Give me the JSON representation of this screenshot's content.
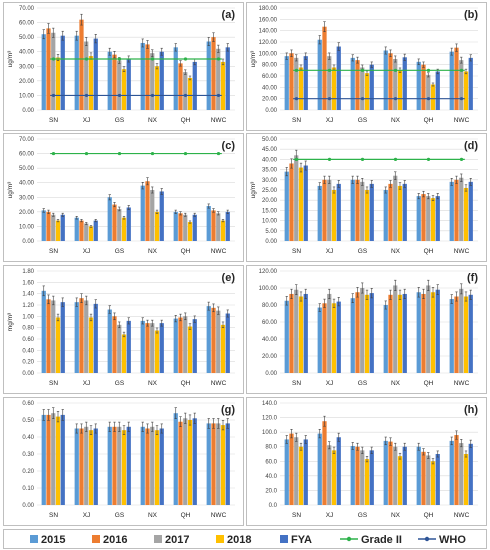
{
  "chart_data": [
    {
      "id": "a",
      "type": "bar",
      "tag": "(a)",
      "ylabel": "ug/m³",
      "categories": [
        "SN",
        "XJ",
        "GS",
        "NX",
        "QH",
        "NWC"
      ],
      "ylim": [
        0,
        70
      ],
      "yticks": [
        0,
        10,
        20,
        30,
        40,
        50,
        60,
        70
      ],
      "decimals": 2,
      "series": [
        {
          "name": "2015",
          "values": [
            52,
            51,
            40,
            46,
            43,
            47
          ]
        },
        {
          "name": "2016",
          "values": [
            56,
            62,
            38,
            45,
            32,
            50
          ]
        },
        {
          "name": "2017",
          "values": [
            53,
            47,
            34,
            39,
            26,
            42
          ]
        },
        {
          "name": "2018",
          "values": [
            36,
            37,
            28,
            30,
            22,
            33
          ]
        },
        {
          "name": "FYA",
          "values": [
            51,
            49,
            35,
            40,
            33,
            43
          ]
        }
      ],
      "grade2": 35,
      "who": 10
    },
    {
      "id": "b",
      "type": "bar",
      "tag": "(b)",
      "ylabel": "ug/m³",
      "categories": [
        "SN",
        "XJ",
        "GS",
        "NX",
        "QH",
        "NWC"
      ],
      "ylim": [
        0,
        180
      ],
      "yticks": [
        0,
        20,
        40,
        60,
        80,
        100,
        120,
        140,
        160,
        180
      ],
      "decimals": 2,
      "series": [
        {
          "name": "2015",
          "values": [
            95,
            124,
            92,
            105,
            85,
            103
          ]
        },
        {
          "name": "2016",
          "values": [
            100,
            147,
            88,
            100,
            80,
            110
          ]
        },
        {
          "name": "2017",
          "values": [
            92,
            95,
            75,
            90,
            62,
            88
          ]
        },
        {
          "name": "2018",
          "values": [
            75,
            75,
            65,
            70,
            45,
            68
          ]
        },
        {
          "name": "FYA",
          "values": [
            95,
            112,
            80,
            93,
            68,
            92
          ]
        }
      ],
      "grade2": 70,
      "who": 20
    },
    {
      "id": "c",
      "type": "bar",
      "tag": "(c)",
      "ylabel": "ug/m³",
      "categories": [
        "SN",
        "XJ",
        "GS",
        "NX",
        "QH",
        "NWC"
      ],
      "ylim": [
        0,
        70
      ],
      "yticks": [
        0,
        10,
        20,
        30,
        40,
        50,
        60,
        70
      ],
      "decimals": 2,
      "series": [
        {
          "name": "2015",
          "values": [
            21,
            16,
            30,
            38,
            20,
            24
          ]
        },
        {
          "name": "2016",
          "values": [
            20,
            14,
            25,
            41,
            19,
            21
          ]
        },
        {
          "name": "2017",
          "values": [
            18,
            12,
            22,
            35,
            18,
            19
          ]
        },
        {
          "name": "2018",
          "values": [
            14,
            10,
            16,
            20,
            13,
            14
          ]
        },
        {
          "name": "FYA",
          "values": [
            18,
            14,
            23,
            34,
            18,
            20
          ]
        }
      ],
      "grade2": 60,
      "who": null
    },
    {
      "id": "d",
      "type": "bar",
      "tag": "(d)",
      "ylabel": "ug/m³",
      "categories": [
        "SN",
        "XJ",
        "GS",
        "NX",
        "QH",
        "NWC"
      ],
      "ylim": [
        0,
        50
      ],
      "yticks": [
        0,
        5,
        10,
        15,
        20,
        25,
        30,
        35,
        40,
        45,
        50
      ],
      "decimals": 2,
      "series": [
        {
          "name": "2015",
          "values": [
            34,
            27,
            30,
            25,
            22,
            29
          ]
        },
        {
          "name": "2016",
          "values": [
            38,
            30,
            30,
            28,
            23,
            30
          ]
        },
        {
          "name": "2017",
          "values": [
            42,
            30,
            29,
            32,
            22,
            31
          ]
        },
        {
          "name": "2018",
          "values": [
            36,
            25,
            25,
            27,
            21,
            26
          ]
        },
        {
          "name": "FYA",
          "values": [
            37,
            28,
            28,
            28,
            22,
            29
          ]
        }
      ],
      "grade2": 40,
      "who": null
    },
    {
      "id": "e",
      "type": "bar",
      "tag": "(e)",
      "ylabel": "mg/m³",
      "categories": [
        "SN",
        "XJ",
        "GS",
        "NX",
        "QH",
        "NWC"
      ],
      "ylim": [
        0,
        1.8
      ],
      "yticks": [
        0,
        0.2,
        0.4,
        0.6,
        0.8,
        1.0,
        1.2,
        1.4,
        1.6,
        1.8
      ],
      "decimals": 2,
      "series": [
        {
          "name": "2015",
          "values": [
            1.45,
            1.25,
            1.12,
            0.92,
            0.96,
            1.18
          ]
        },
        {
          "name": "2016",
          "values": [
            1.3,
            1.32,
            1.0,
            0.88,
            0.98,
            1.15
          ]
        },
        {
          "name": "2017",
          "values": [
            1.28,
            1.28,
            0.85,
            0.88,
            1.0,
            1.1
          ]
        },
        {
          "name": "2018",
          "values": [
            0.98,
            0.98,
            0.68,
            0.75,
            0.82,
            0.85
          ]
        },
        {
          "name": "FYA",
          "values": [
            1.25,
            1.22,
            0.92,
            0.88,
            0.95,
            1.05
          ]
        }
      ],
      "grade2": null,
      "who": null
    },
    {
      "id": "f",
      "type": "bar",
      "tag": "(f)",
      "ylabel": "",
      "categories": [
        "SN",
        "XJ",
        "GS",
        "NX",
        "QH",
        "NWC"
      ],
      "ylim": [
        0,
        120
      ],
      "yticks": [
        0,
        20,
        40,
        60,
        80,
        100,
        120
      ],
      "decimals": 2,
      "series": [
        {
          "name": "2015",
          "values": [
            85,
            77,
            88,
            80,
            95,
            87
          ]
        },
        {
          "name": "2016",
          "values": [
            93,
            82,
            95,
            92,
            93,
            90
          ]
        },
        {
          "name": "2017",
          "values": [
            98,
            93,
            100,
            103,
            103,
            99
          ]
        },
        {
          "name": "2018",
          "values": [
            90,
            82,
            92,
            92,
            95,
            90
          ]
        },
        {
          "name": "FYA",
          "values": [
            93,
            84,
            94,
            93,
            98,
            92
          ]
        }
      ],
      "grade2": null,
      "who": null
    },
    {
      "id": "g",
      "type": "bar",
      "tag": "(g)",
      "ylabel": "",
      "categories": [
        "SN",
        "XJ",
        "GS",
        "NX",
        "QH",
        "NWC"
      ],
      "ylim": [
        0,
        0.6
      ],
      "yticks": [
        0,
        0.1,
        0.2,
        0.3,
        0.4,
        0.5,
        0.6
      ],
      "decimals": 2,
      "series": [
        {
          "name": "2015",
          "values": [
            0.53,
            0.45,
            0.46,
            0.46,
            0.54,
            0.48
          ]
        },
        {
          "name": "2016",
          "values": [
            0.53,
            0.45,
            0.46,
            0.45,
            0.49,
            0.48
          ]
        },
        {
          "name": "2017",
          "values": [
            0.54,
            0.46,
            0.46,
            0.46,
            0.51,
            0.48
          ]
        },
        {
          "name": "2018",
          "values": [
            0.52,
            0.44,
            0.44,
            0.44,
            0.5,
            0.47
          ]
        },
        {
          "name": "FYA",
          "values": [
            0.53,
            0.45,
            0.46,
            0.45,
            0.51,
            0.48
          ]
        }
      ],
      "grade2": null,
      "who": null
    },
    {
      "id": "h",
      "type": "bar",
      "tag": "(h)",
      "ylabel": "",
      "categories": [
        "SN",
        "XJ",
        "GS",
        "NX",
        "QH",
        "NWC"
      ],
      "ylim": [
        0,
        140
      ],
      "yticks": [
        0,
        20,
        40,
        60,
        80,
        100,
        120,
        140
      ],
      "decimals": 1,
      "series": [
        {
          "name": "2015",
          "values": [
            90,
            98,
            81,
            88,
            80,
            88
          ]
        },
        {
          "name": "2016",
          "values": [
            98,
            115,
            80,
            87,
            73,
            96
          ]
        },
        {
          "name": "2017",
          "values": [
            93,
            82,
            75,
            80,
            68,
            85
          ]
        },
        {
          "name": "2018",
          "values": [
            80,
            75,
            63,
            67,
            60,
            70
          ]
        },
        {
          "name": "FYA",
          "values": [
            90,
            93,
            75,
            80,
            70,
            84
          ]
        }
      ],
      "grade2": null,
      "who": null
    }
  ],
  "legend": {
    "items": [
      {
        "label": "2015",
        "kind": "box",
        "color": "#5b9bd5"
      },
      {
        "label": "2016",
        "kind": "box",
        "color": "#ed7d31"
      },
      {
        "label": "2017",
        "kind": "box",
        "color": "#a5a5a5"
      },
      {
        "label": "2018",
        "kind": "box",
        "color": "#ffc000"
      },
      {
        "label": "FYA",
        "kind": "box",
        "color": "#4472c4"
      },
      {
        "label": "Grade II",
        "kind": "line",
        "color": "#2db24a"
      },
      {
        "label": "WHO",
        "kind": "line",
        "color": "#2e5597"
      }
    ]
  },
  "colors": {
    "series": [
      "#5b9bd5",
      "#ed7d31",
      "#a5a5a5",
      "#ffc000",
      "#4472c4"
    ],
    "grade2": "#2db24a",
    "who": "#2e5597"
  }
}
